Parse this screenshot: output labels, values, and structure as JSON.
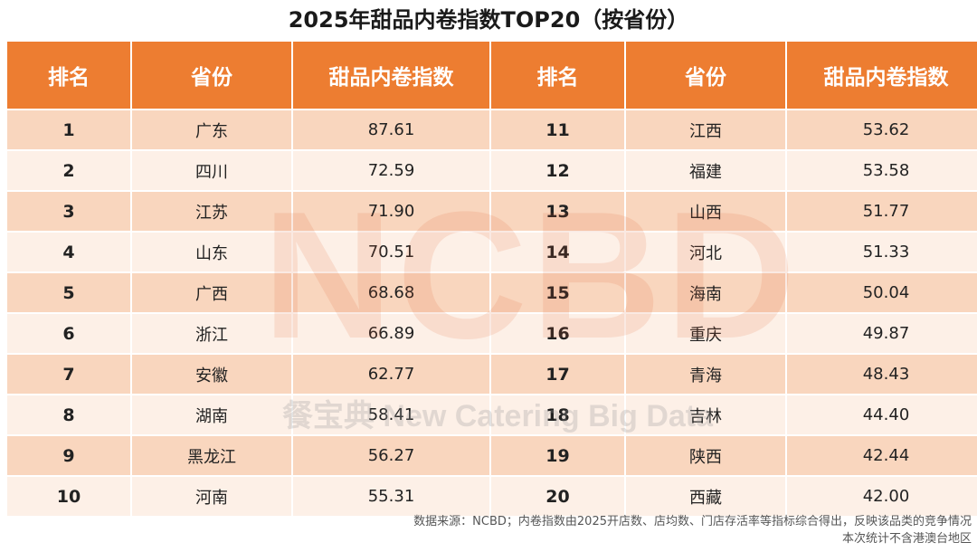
{
  "title": "2025年甜品内卷指数TOP20（按省份）",
  "watermark": {
    "logo": "NCBD",
    "text": "餐宝典 New Catering Big Data"
  },
  "columns": [
    "排名",
    "省份",
    "甜品内卷指数",
    "排名",
    "省份",
    "甜品内卷指数"
  ],
  "rows": [
    [
      "1",
      "广东",
      "87.61",
      "11",
      "江西",
      "53.62"
    ],
    [
      "2",
      "四川",
      "72.59",
      "12",
      "福建",
      "53.58"
    ],
    [
      "3",
      "江苏",
      "71.90",
      "13",
      "山西",
      "51.77"
    ],
    [
      "4",
      "山东",
      "70.51",
      "14",
      "河北",
      "51.33"
    ],
    [
      "5",
      "广西",
      "68.68",
      "15",
      "海南",
      "50.04"
    ],
    [
      "6",
      "浙江",
      "66.89",
      "16",
      "重庆",
      "49.87"
    ],
    [
      "7",
      "安徽",
      "62.77",
      "17",
      "青海",
      "48.43"
    ],
    [
      "8",
      "湖南",
      "58.41",
      "18",
      "吉林",
      "44.40"
    ],
    [
      "9",
      "黑龙江",
      "56.27",
      "19",
      "陕西",
      "42.44"
    ],
    [
      "10",
      "河南",
      "55.31",
      "20",
      "西藏",
      "42.00"
    ]
  ],
  "footnote": {
    "line1": "数据来源：NCBD；内卷指数由2025开店数、店均数、门店存活率等指标综合得出，反映该品类的竞争情况",
    "line2": "本次统计不含港澳台地区"
  },
  "colors": {
    "header_bg": "#ed7d31",
    "row_odd": "#f7cbac",
    "row_even": "#fce8da"
  }
}
